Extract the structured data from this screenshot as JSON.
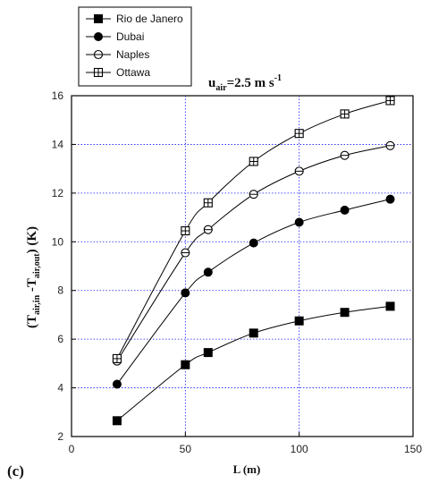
{
  "chart_data": {
    "type": "line",
    "panel_label": "(c)",
    "annotation": {
      "base": "u",
      "sub": "air",
      "text": "=2.5 m s",
      "sup": "-1"
    },
    "xlabel": "L (m)",
    "ylabel_parts": {
      "open": "(T",
      "sub1": "air,in",
      "mid": " -T",
      "sub2": "air,out",
      "close": ")   (K)"
    },
    "xlim": [
      0,
      150
    ],
    "ylim": [
      2,
      16
    ],
    "x_ticks": [
      0,
      50,
      100,
      150
    ],
    "y_ticks": [
      2,
      4,
      6,
      8,
      10,
      12,
      14,
      16
    ],
    "grid": true,
    "legend_position": "top-left",
    "series": [
      {
        "name": "Rio de Janero",
        "marker": "filled-square",
        "x": [
          20,
          50,
          60,
          80,
          100,
          120,
          140
        ],
        "values": [
          2.65,
          4.95,
          5.45,
          6.25,
          6.75,
          7.1,
          7.35
        ]
      },
      {
        "name": "Dubai",
        "marker": "filled-circle",
        "x": [
          20,
          50,
          60,
          80,
          100,
          120,
          140
        ],
        "values": [
          4.15,
          7.9,
          8.75,
          9.95,
          10.8,
          11.3,
          11.75
        ]
      },
      {
        "name": "Naples",
        "marker": "open-circle",
        "x": [
          20,
          50,
          60,
          80,
          100,
          120,
          140
        ],
        "values": [
          5.1,
          9.55,
          10.5,
          11.95,
          12.9,
          13.55,
          13.95
        ]
      },
      {
        "name": "Ottawa",
        "marker": "crossed-square",
        "x": [
          20,
          50,
          60,
          80,
          100,
          120,
          140
        ],
        "values": [
          5.2,
          10.45,
          11.6,
          13.3,
          14.45,
          15.25,
          15.8
        ]
      }
    ]
  }
}
